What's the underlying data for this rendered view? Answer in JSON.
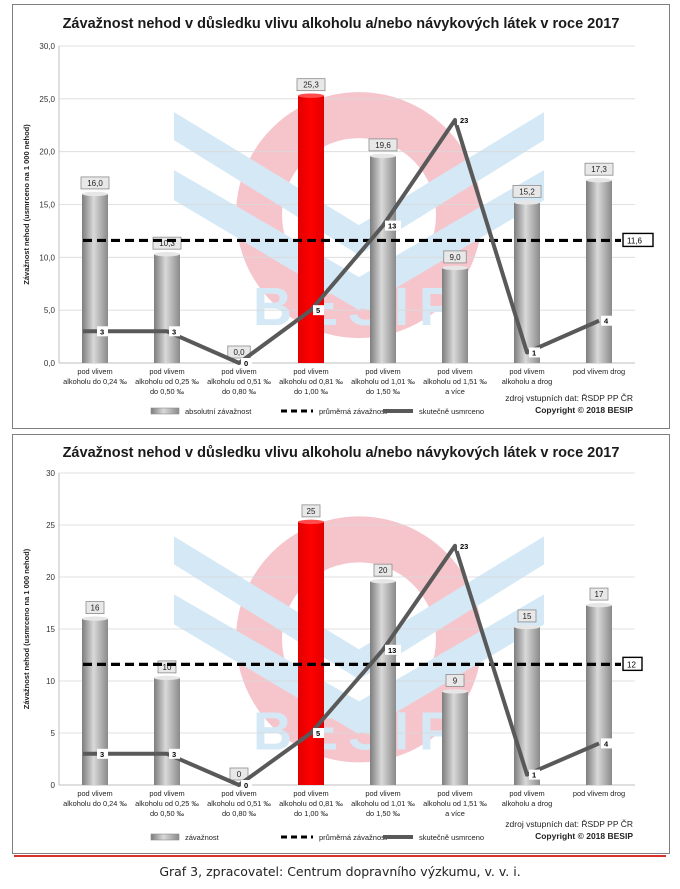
{
  "caption": "Graf 3, zpracovatel: Centrum dopravního výzkumu, v. v. i.",
  "watermark_text": "BESIP",
  "colors": {
    "bar": "#a6a6a6",
    "highlight_bar": "#ff0000",
    "line": "#595959",
    "average": "#000000",
    "watermark_red": "#f5bcc4",
    "watermark_blue": "#cde5f5"
  },
  "chart_data": [
    {
      "type": "bar",
      "title": "Závažnost nehod v důsledku vlivu alkoholu a/nebo návykových látek v roce 2017",
      "ylabel": "Závažnost nehod (usmrceno na 1 000 nehod)",
      "ylim": [
        0,
        30
      ],
      "yticks": [
        "0,0",
        "5,0",
        "10,0",
        "15,0",
        "20,0",
        "25,0",
        "30,0"
      ],
      "categories": [
        [
          "pod vlivem",
          "alkoholu do 0,24 ‰"
        ],
        [
          "pod vlivem",
          "alkoholu od 0,25 ‰",
          "do 0,50 ‰"
        ],
        [
          "pod vlivem",
          "alkoholu od 0,51 ‰",
          "do 0,80 ‰"
        ],
        [
          "pod vlivem",
          "alkoholu od 0,81 ‰",
          "do 1,00 ‰"
        ],
        [
          "pod vlivem",
          "alkoholu od 1,01 ‰",
          "do 1,50 ‰"
        ],
        [
          "pod vlivem",
          "alkoholu od 1,51 ‰",
          "a více"
        ],
        [
          "pod vlivem",
          "alkoholu a drog"
        ],
        [
          "pod vlivem drog"
        ]
      ],
      "highlight_index": 3,
      "series": [
        {
          "name": "absolutní závažnost",
          "kind": "bar",
          "values": [
            16.0,
            10.3,
            0.0,
            25.3,
            19.6,
            9.0,
            15.2,
            17.3
          ],
          "labels": [
            "16,0",
            "10,3",
            "0,0",
            "25,3",
            "19,6",
            "9,0",
            "15,2",
            "17,3"
          ]
        },
        {
          "name": "průměrná závažnost",
          "kind": "average",
          "value": 11.6,
          "label": "11,6"
        },
        {
          "name": "skutečně usmrceno",
          "kind": "line",
          "values": [
            3,
            3,
            0,
            5,
            13,
            23,
            1,
            4
          ],
          "labels": [
            "3",
            "3",
            "0",
            "5",
            "13",
            "23",
            "1",
            "4"
          ]
        }
      ],
      "source": "zdroj vstupních dat: ŘSDP PP ČR",
      "copyright": "Copyright © 2018 BESIP"
    },
    {
      "type": "bar",
      "title": "Závažnost nehod v důsledku vlivu alkoholu a/nebo návykových látek v roce 2017",
      "ylabel": "Závažnost nehod (usmrceno na 1 000 nehod)",
      "ylim": [
        0,
        30
      ],
      "yticks": [
        "0",
        "5",
        "10",
        "15",
        "20",
        "25",
        "30"
      ],
      "categories": [
        [
          "pod vlivem",
          "alkoholu do 0,24 ‰"
        ],
        [
          "pod vlivem",
          "alkoholu od 0,25 ‰",
          "do 0,50 ‰"
        ],
        [
          "pod vlivem",
          "alkoholu od 0,51 ‰",
          "do 0,80 ‰"
        ],
        [
          "pod vlivem",
          "alkoholu od 0,81 ‰",
          "do 1,00 ‰"
        ],
        [
          "pod vlivem",
          "alkoholu od 1,01 ‰",
          "do 1,50 ‰"
        ],
        [
          "pod vlivem",
          "alkoholu od 1,51 ‰",
          "a více"
        ],
        [
          "pod vlivem",
          "alkoholu a drog"
        ],
        [
          "pod vlivem drog"
        ]
      ],
      "highlight_index": 3,
      "series": [
        {
          "name": "závažnost",
          "kind": "bar",
          "values": [
            16.0,
            10.3,
            0.0,
            25.3,
            19.6,
            9.0,
            15.2,
            17.3
          ],
          "labels": [
            "16",
            "10",
            "0",
            "25",
            "20",
            "9",
            "15",
            "17"
          ]
        },
        {
          "name": "průměrná závažnost",
          "kind": "average",
          "value": 11.6,
          "label": "12"
        },
        {
          "name": "skutečně usmrceno",
          "kind": "line",
          "values": [
            3,
            3,
            0,
            5,
            13,
            23,
            1,
            4
          ],
          "labels": [
            "3",
            "3",
            "0",
            "5",
            "13",
            "23",
            "1",
            "4"
          ]
        }
      ],
      "source": "zdroj vstupních dat: ŘSDP PP ČR",
      "copyright": "Copyright © 2018 BESIP"
    }
  ]
}
